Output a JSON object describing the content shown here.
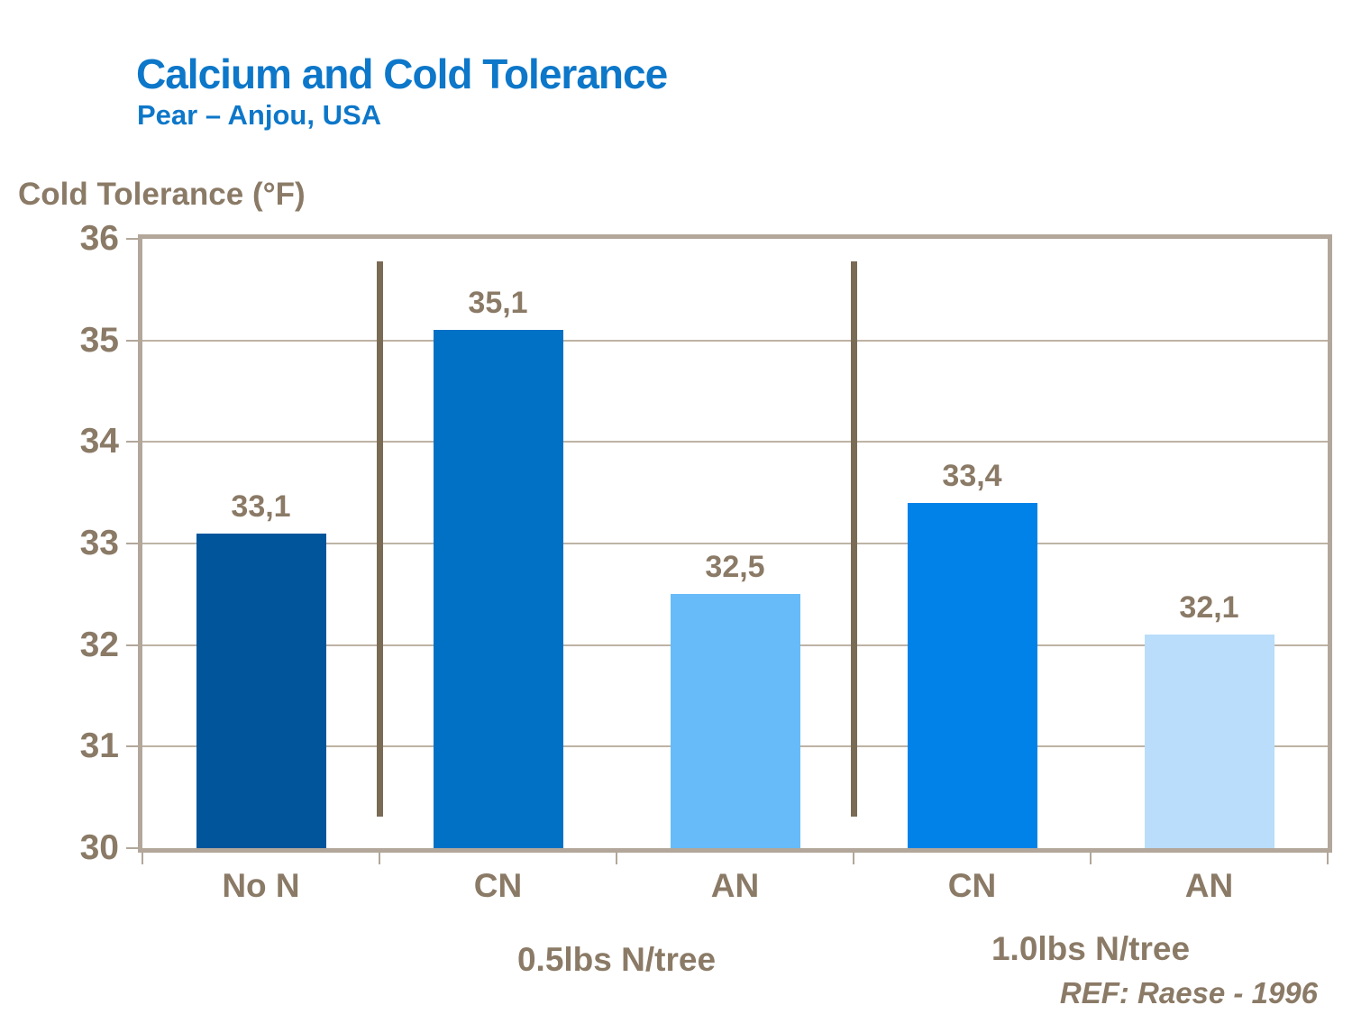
{
  "title": "Calcium and Cold Tolerance",
  "subtitle": "Pear – Anjou, USA",
  "reference": "REF: Raese - 1996",
  "colors": {
    "title_blue": "#0d77c9",
    "text_brown": "#8a7a66",
    "frame_tan": "#b2a79a",
    "gridline": "#beb3a5",
    "separator": "#7a6b55",
    "bar_colors": [
      "#00559b",
      "#0071c5",
      "#66bbf8",
      "#0082e8",
      "#b9ddfa"
    ]
  },
  "chart_data": {
    "type": "bar",
    "title": "Calcium and Cold Tolerance",
    "subtitle": "Pear – Anjou, USA",
    "ylabel": "Cold Tolerance (°F)",
    "xlabel": "",
    "categories": [
      "No N",
      "CN",
      "AN",
      "CN",
      "AN"
    ],
    "values": [
      33.1,
      35.1,
      32.5,
      33.4,
      32.1
    ],
    "value_labels": [
      "33,1",
      "35,1",
      "32,5",
      "33,4",
      "32,1"
    ],
    "groups": [
      {
        "label": "0.5lbs N/tree",
        "categories": [
          1,
          2
        ]
      },
      {
        "label": "1.0lbs N/tree",
        "categories": [
          3,
          4
        ]
      }
    ],
    "separator_boundaries": [
      1,
      3
    ],
    "ylim": [
      30,
      36
    ],
    "yticks": [
      36,
      35,
      34,
      33,
      32,
      31,
      30
    ],
    "grid": true,
    "legend_position": "none"
  }
}
